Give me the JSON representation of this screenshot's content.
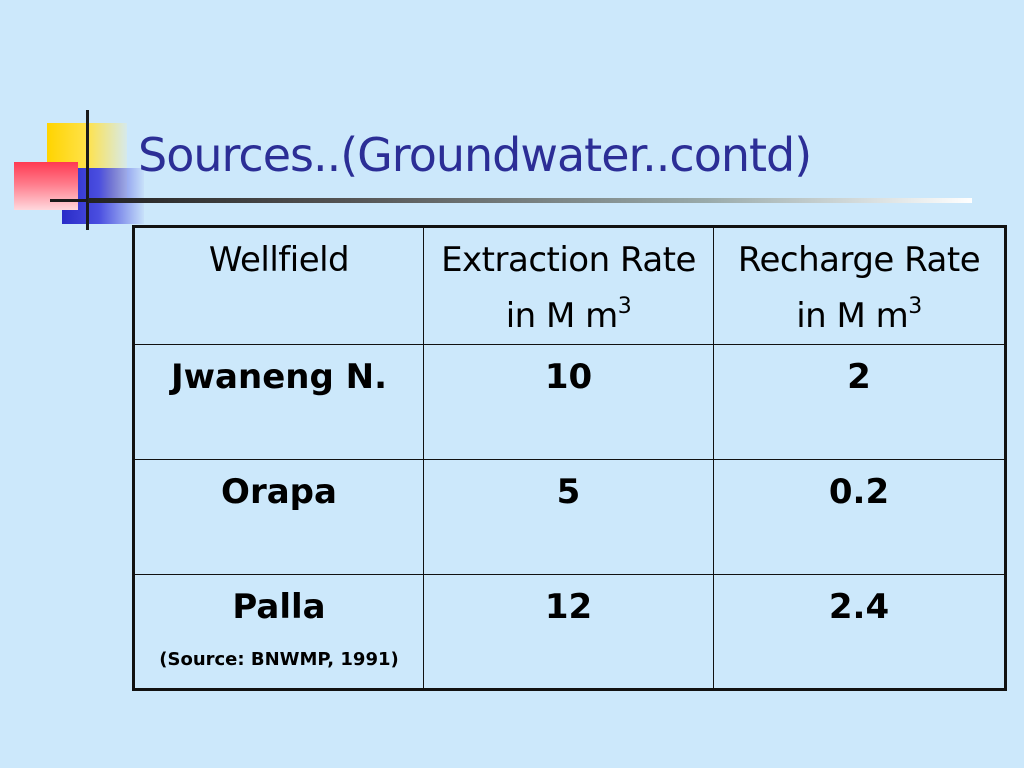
{
  "slide": {
    "title": "Sources..(Groundwater..contd)",
    "colors": {
      "background": "#cce8fb",
      "title": "#2c2e96",
      "logo_yellow": "#ffd400",
      "logo_blue": "#2a2cc8",
      "logo_red": "#ff3a52"
    }
  },
  "table": {
    "headers": {
      "wellfield": "Wellfield",
      "extraction_line1": "Extraction Rate",
      "extraction_line2": "in M m",
      "extraction_sup": "3",
      "recharge_line1": "Recharge Rate",
      "recharge_line2": "in M m",
      "recharge_sup": "3"
    },
    "rows": [
      {
        "wellfield": "Jwaneng N.",
        "extraction": "10",
        "recharge": "2"
      },
      {
        "wellfield": "Orapa",
        "extraction": "5",
        "recharge": "0.2"
      },
      {
        "wellfield": "Palla",
        "extraction": "12",
        "recharge": "2.4"
      }
    ],
    "source_note": "(Source: BNWMP, 1991)"
  }
}
